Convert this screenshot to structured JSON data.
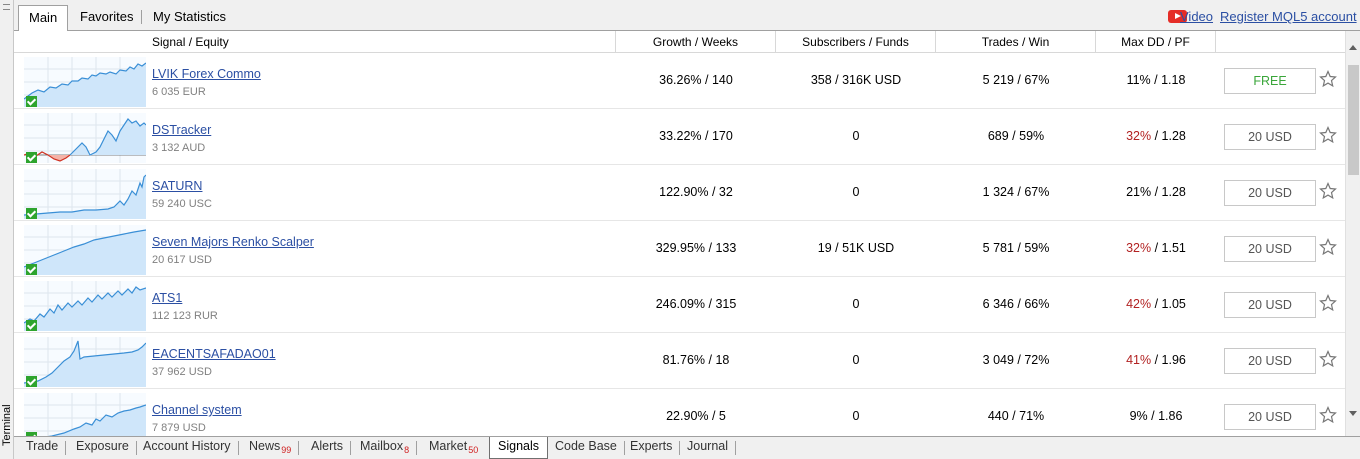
{
  "side_panel": {
    "label": "Terminal"
  },
  "top_tabs": [
    {
      "label": "Main",
      "active": true
    },
    {
      "label": "Favorites",
      "active": false
    },
    {
      "label": "My Statistics",
      "active": false
    }
  ],
  "top_links": {
    "video": "Video",
    "register": "Register MQL5 account"
  },
  "columns": {
    "signal": "Signal / Equity",
    "growth": "Growth / Weeks",
    "subscribers": "Subscribers / Funds",
    "trades": "Trades / Win",
    "maxdd": "Max DD / PF"
  },
  "signals": [
    {
      "name": "LVIK Forex Commo",
      "equity": "6 035 EUR",
      "growth": "36.26% / 140",
      "subscribers": "358 / 316K USD",
      "trades": "5 219 / 67%",
      "maxdd_value": "11%",
      "maxdd_pf": " / 1.18",
      "maxdd_red": false,
      "price": "FREE",
      "free": true
    },
    {
      "name": "DSTracker",
      "equity": "3 132 AUD",
      "growth": "33.22% / 170",
      "subscribers": "0",
      "trades": "689 / 59%",
      "maxdd_value": "32%",
      "maxdd_pf": " / 1.28",
      "maxdd_red": true,
      "price": "20 USD",
      "free": false
    },
    {
      "name": "SATURN",
      "equity": "59 240 USC",
      "growth": "122.90% / 32",
      "subscribers": "0",
      "trades": "1 324 / 67%",
      "maxdd_value": "21%",
      "maxdd_pf": " / 1.28",
      "maxdd_red": false,
      "price": "20 USD",
      "free": false
    },
    {
      "name": "Seven Majors Renko Scalper",
      "equity": "20 617 USD",
      "growth": "329.95% / 133",
      "subscribers": "19 / 51K USD",
      "trades": "5 781 / 59%",
      "maxdd_value": "32%",
      "maxdd_pf": " / 1.51",
      "maxdd_red": true,
      "price": "20 USD",
      "free": false
    },
    {
      "name": "ATS1",
      "equity": "112 123 RUR",
      "growth": "246.09% / 315",
      "subscribers": "0",
      "trades": "6 346 / 66%",
      "maxdd_value": "42%",
      "maxdd_pf": " / 1.05",
      "maxdd_red": true,
      "price": "20 USD",
      "free": false
    },
    {
      "name": "EACENTSAFADAO01",
      "equity": "37 962 USD",
      "growth": "81.76% / 18",
      "subscribers": "0",
      "trades": "3 049 / 72%",
      "maxdd_value": "41%",
      "maxdd_pf": " / 1.96",
      "maxdd_red": true,
      "price": "20 USD",
      "free": false
    },
    {
      "name": "Channel system",
      "equity": "7 879 USD",
      "growth": "22.90% / 5",
      "subscribers": "0",
      "trades": "440 / 71%",
      "maxdd_value": "9%",
      "maxdd_pf": " / 1.86",
      "maxdd_red": false,
      "price": "20 USD",
      "free": false
    }
  ],
  "bottom_tabs": [
    {
      "label": "Trade",
      "badge": ""
    },
    {
      "label": "Exposure",
      "badge": ""
    },
    {
      "label": "Account History",
      "badge": ""
    },
    {
      "label": "News",
      "badge": "99"
    },
    {
      "label": "Alerts",
      "badge": ""
    },
    {
      "label": "Mailbox",
      "badge": "8"
    },
    {
      "label": "Market",
      "badge": "50"
    },
    {
      "label": "Signals",
      "badge": "",
      "active": true
    },
    {
      "label": "Code Base",
      "badge": ""
    },
    {
      "label": "Experts",
      "badge": ""
    },
    {
      "label": "Journal",
      "badge": ""
    }
  ],
  "colors": {
    "link": "#2b4fa3",
    "free": "#3aa63a",
    "drawdown_red": "#b22222",
    "chart_line": "#3a8fd6",
    "chart_fill": "#cfe6fa",
    "chart_negative": "#d03020",
    "check_green": "#2ea42e",
    "youtube_red": "#e52d27"
  }
}
